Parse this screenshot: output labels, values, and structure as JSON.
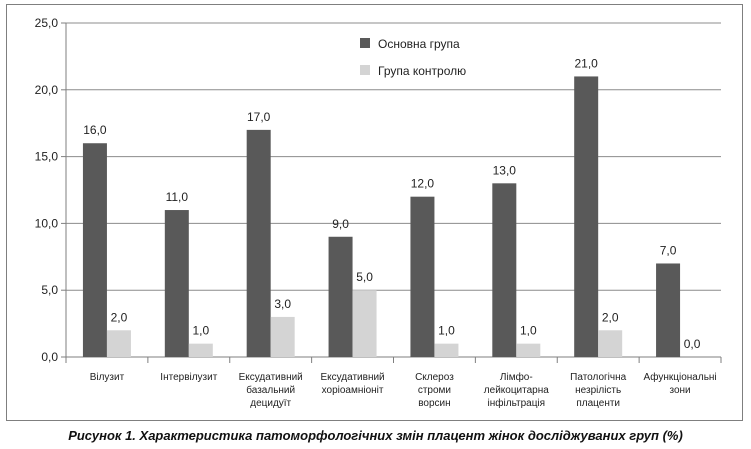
{
  "caption": "Рисунок 1. Характеристика патоморфологічних змін плацент жінок досліджуваних груп (%)",
  "chart_data": {
    "type": "bar",
    "categories": [
      [
        "Вілузит"
      ],
      [
        "Інтервілузит"
      ],
      [
        "Ексудативний",
        "базальний",
        "децидуїт"
      ],
      [
        "Ексудативний",
        "хоріоамніоніт"
      ],
      [
        "Склероз",
        "строми",
        "ворсин"
      ],
      [
        "Лімфо-",
        "лейкоцитарна",
        "інфільтрація"
      ],
      [
        "Патологічна",
        "незрілість",
        "плаценти"
      ],
      [
        "Афункціональні",
        "зони"
      ]
    ],
    "series": [
      {
        "name": "Основна група",
        "values": [
          16.0,
          11.0,
          17.0,
          9.0,
          12.0,
          13.0,
          21.0,
          7.0
        ],
        "color": "#595959"
      },
      {
        "name": "Група контролю",
        "values": [
          2.0,
          1.0,
          3.0,
          5.0,
          1.0,
          1.0,
          2.0,
          0.0
        ],
        "color": "#d4d4d4"
      }
    ],
    "y_ticks": [
      "0,0",
      "5,0",
      "10,0",
      "15,0",
      "20,0",
      "25,0"
    ],
    "ylim": [
      0,
      25
    ],
    "grid": true,
    "legend_position": "top-center",
    "data_labels": true
  }
}
